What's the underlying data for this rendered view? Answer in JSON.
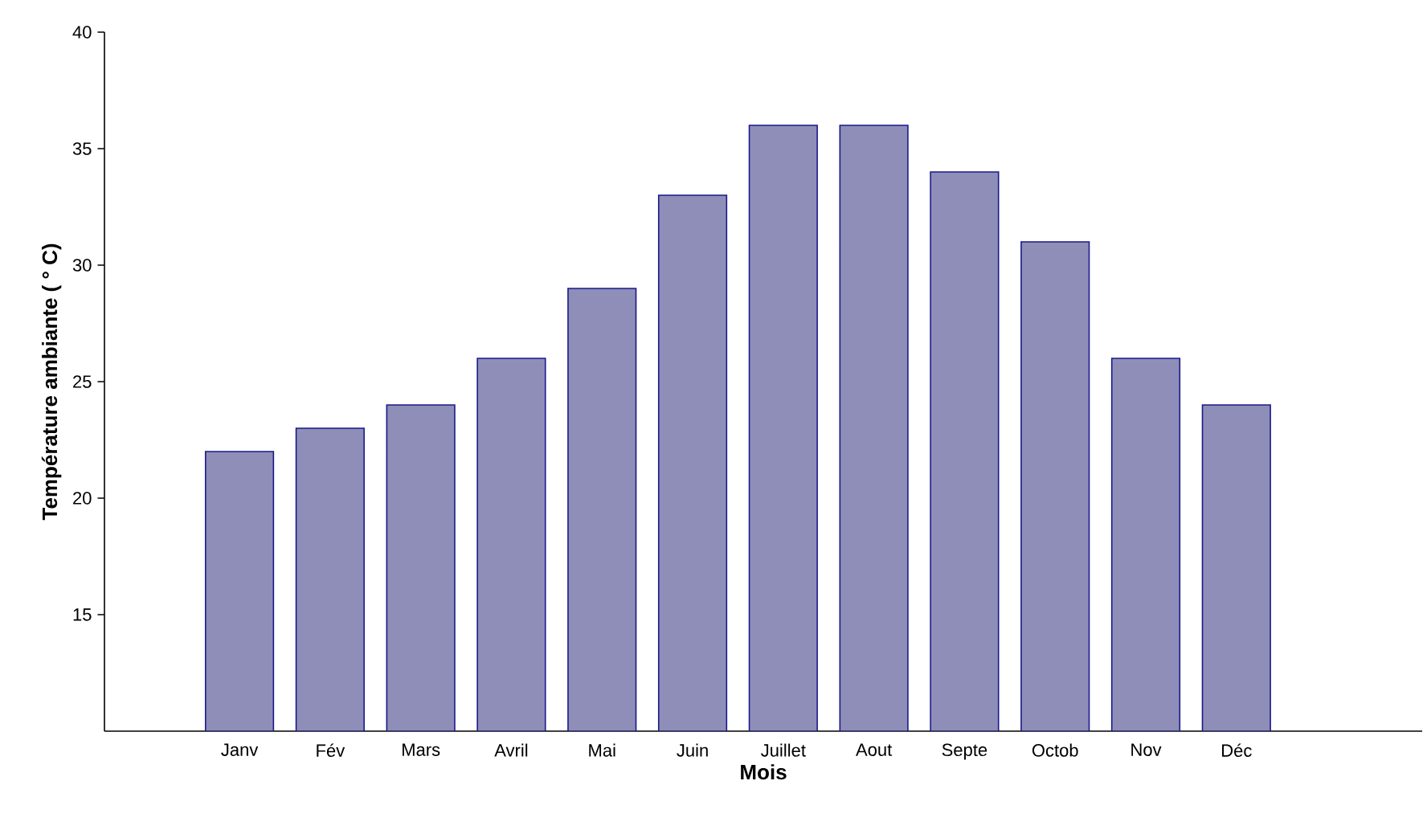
{
  "chart_data": {
    "type": "bar",
    "xlabel": "Mois",
    "ylabel": "Température ambiante ( ° C)",
    "categories": [
      "Janv",
      "Fév",
      "Mars",
      "Avril",
      "Mai",
      "Juin",
      "Juillet",
      "Aout",
      "Septe",
      "Octob",
      "Nov",
      "Déc"
    ],
    "values": [
      22,
      23,
      24,
      26,
      29,
      33,
      36,
      36,
      34,
      31,
      26,
      24
    ],
    "color": "#8e8eb8",
    "ylim": [
      10,
      40
    ],
    "yticks": [
      15,
      20,
      25,
      30,
      35,
      40
    ],
    "grid": false
  }
}
